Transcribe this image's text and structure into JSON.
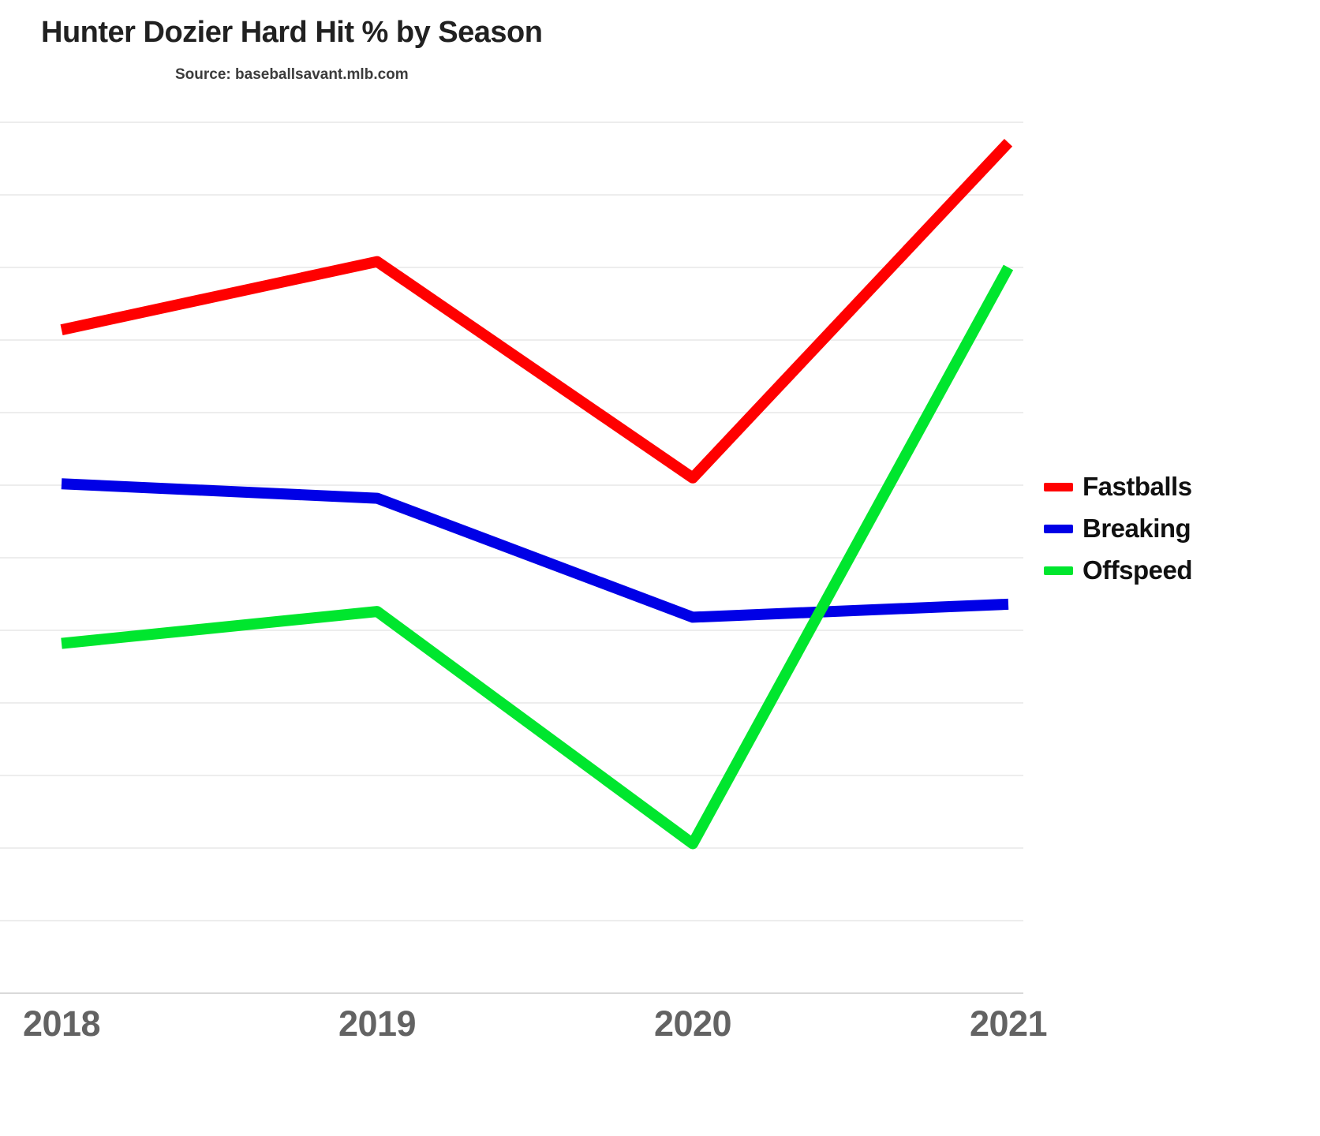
{
  "header": {
    "title": "Hunter Dozier Hard Hit % by Season",
    "source": "Source: baseballsavant.mlb.com"
  },
  "chart_data": {
    "type": "line",
    "title": "Hunter Dozier Hard Hit % by Season",
    "subtitle": "Source: baseballsavant.mlb.com",
    "x": [
      "2018",
      "2019",
      "2020",
      "2021"
    ],
    "series": [
      {
        "name": "Fastballs",
        "color": "#FF0000",
        "values": [
          55.7,
          60.4,
          45.5,
          68.6
        ]
      },
      {
        "name": "Breaking",
        "color": "#0000E6",
        "values": [
          45.1,
          44.1,
          35.9,
          36.8
        ]
      },
      {
        "name": "Offspeed",
        "color": "#00E62E",
        "values": [
          34.1,
          36.3,
          20.3,
          60.0
        ]
      }
    ],
    "xlabel": "",
    "ylabel": "",
    "ylim": [
      10,
      70
    ],
    "grid_step": 5,
    "grid": true,
    "y_tick_labels_visible": false,
    "legend_position": "right",
    "line_width": 14
  },
  "colors": {
    "grid": "#e7e7e7",
    "axis": "#d9d9d9",
    "tick_label": "#636363",
    "title": "#212121"
  }
}
